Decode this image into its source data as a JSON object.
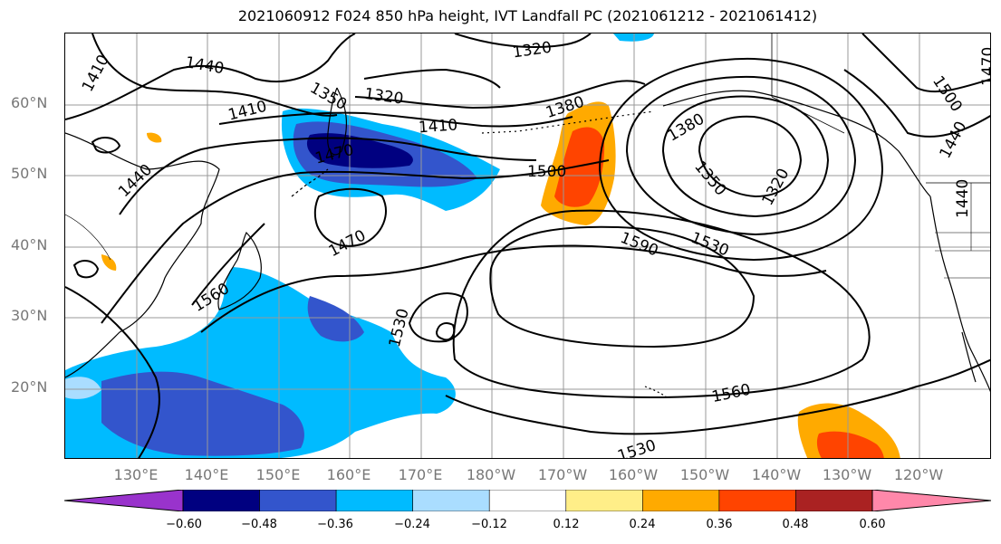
{
  "title": "2021060912 F024 850 hPa height, IVT Landfall PC (2021061212 - 2021061412)",
  "lat_labels": [
    "60°N",
    "50°N",
    "40°N",
    "30°N",
    "20°N"
  ],
  "lon_labels": [
    "130°E",
    "140°E",
    "150°E",
    "160°E",
    "170°E",
    "180°W",
    "170°W",
    "160°W",
    "150°W",
    "140°W",
    "130°W",
    "120°W"
  ],
  "contour_labels": [
    "1410",
    "1440",
    "1320",
    "1380",
    "1350",
    "1320",
    "1410",
    "1410",
    "1440",
    "1470",
    "1500",
    "1380",
    "1350",
    "1320",
    "1470",
    "1500",
    "1440",
    "1440",
    "1470",
    "1590",
    "1530",
    "1560",
    "1530",
    "1560",
    "1530"
  ],
  "colorbar": {
    "colors": [
      "#9933cc",
      "#000080",
      "#3355cc",
      "#00bbff",
      "#aaddff",
      "#ffffff",
      "#ffee88",
      "#ffaa00",
      "#ff4400",
      "#aa2222",
      "#ff88aa"
    ],
    "ticks": [
      "−0.60",
      "−0.48",
      "−0.36",
      "−0.24",
      "−0.12",
      "0.12",
      "0.24",
      "0.36",
      "0.48",
      "0.60"
    ]
  }
}
